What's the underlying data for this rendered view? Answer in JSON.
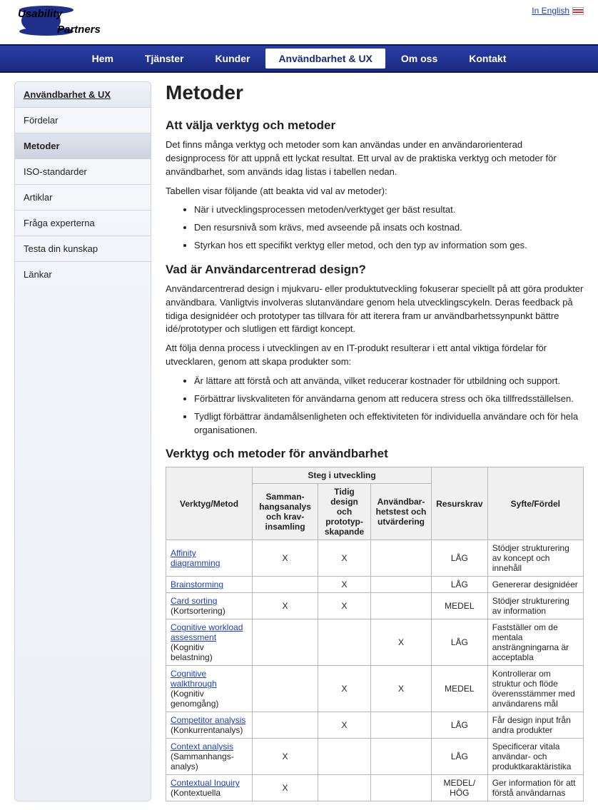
{
  "logo": {
    "line1": "Usability",
    "line2": "Partners"
  },
  "lang": {
    "label": "In English"
  },
  "nav": [
    {
      "label": "Hem",
      "active": false
    },
    {
      "label": "Tjänster",
      "active": false
    },
    {
      "label": "Kunder",
      "active": false
    },
    {
      "label": "Användbarhet & UX",
      "active": true
    },
    {
      "label": "Om oss",
      "active": false
    },
    {
      "label": "Kontakt",
      "active": false
    }
  ],
  "sidebar": [
    {
      "label": "Användbarhet & UX",
      "type": "header"
    },
    {
      "label": "Fördelar",
      "type": "item"
    },
    {
      "label": "Metoder",
      "type": "active"
    },
    {
      "label": "ISO-standarder",
      "type": "item"
    },
    {
      "label": "Artiklar",
      "type": "item"
    },
    {
      "label": "Fråga experterna",
      "type": "item"
    },
    {
      "label": "Testa din kunskap",
      "type": "item"
    },
    {
      "label": "Länkar",
      "type": "item"
    }
  ],
  "page": {
    "title": "Metoder",
    "h2_1": "Att välja verktyg och metoder",
    "p1": "Det finns många verktyg och metoder som kan användas under en användarorienterad designprocess för att uppnå ett lyckat resultat. Ett urval av de praktiska verktyg och metoder för användbarhet, som används idag listas i tabellen nedan.",
    "p2": "Tabellen visar följande (att beakta vid val av metoder):",
    "list1": [
      "När i utvecklingsprocessen metoden/verktyget ger bäst resultat.",
      "Den resursnivå som krävs, med avseende på insats och kostnad.",
      "Styrkan hos ett specifikt verktyg eller metod, och den typ av information som ges."
    ],
    "h2_2": "Vad är Användarcentrerad design?",
    "p3": "Användarcentrerad design i mjukvaru- eller produktutveckling fokuserar speciellt på att göra produkter användbara. Vanligtvis involveras slutanvändare genom hela utvecklingscykeln. Deras feedback på tidiga designidéer och prototyper tas tillvara för att iterera fram ur användbarhetssynpunkt bättre idé/prototyper och slutligen ett färdigt koncept.",
    "p4": "Att följa denna process i utvecklingen av en IT-produkt resulterar i ett antal viktiga fördelar för utvecklaren, genom att skapa produkter som:",
    "list2": [
      "Är lättare att förstå och att använda, vilket reducerar kostnader för utbildning och support.",
      "Förbättrar livskvaliteten för användarna genom att reducera stress och öka tillfredsställelsen.",
      "Tydligt förbättrar ändamålsenligheten och effektiviteten för individuella användare och för hela organisationen."
    ],
    "h2_3": "Verktyg och metoder för användbarhet"
  },
  "table": {
    "super_header": "Steg i utveckling",
    "headers": [
      "Verktyg/Metod",
      "Samman-hangsanalys och krav-insamling",
      "Tidig design och prototyp-skapande",
      "Användbar-hetstest och utvärdering",
      "Resurskrav",
      "Syfte/Fördel"
    ],
    "rows": [
      {
        "link": "Affinity diagramming",
        "extra": "",
        "c1": "X",
        "c2": "X",
        "c3": "",
        "res": "LÅG",
        "purpose": "Stödjer strukturering av koncept och innehåll"
      },
      {
        "link": "Brainstorming",
        "extra": "",
        "c1": "",
        "c2": "X",
        "c3": "",
        "res": "LÅG",
        "purpose": "Genererar designidéer"
      },
      {
        "link": "Card sorting",
        "extra": " (Kortsortering)",
        "c1": "X",
        "c2": "X",
        "c3": "",
        "res": "MEDEL",
        "purpose": "Stödjer strukturering av information"
      },
      {
        "link": "Cognitive workload assessment",
        "extra": " (Kognitiv belastning)",
        "c1": "",
        "c2": "",
        "c3": "X",
        "res": "LÅG",
        "purpose": "Fastställer om de mentala ansträngningarna är acceptabla"
      },
      {
        "link": "Cognitive walkthrough",
        "extra": " (Kognitiv genomgång)",
        "c1": "",
        "c2": "X",
        "c3": "X",
        "res": "MEDEL",
        "purpose": "Kontrollerar om struktur och flöde överensstämmer med användarens mål"
      },
      {
        "link": "Competitor analysis",
        "extra": " (Konkurrentanalys)",
        "c1": "",
        "c2": "X",
        "c3": "",
        "res": "LÅG",
        "purpose": "Får design input från andra produkter"
      },
      {
        "link": "Context analysis",
        "extra": " (Sammanhangs-analys)",
        "c1": "X",
        "c2": "",
        "c3": "",
        "res": "LÅG",
        "purpose": "Specificerar vitala användar- och produktkaraktäristika"
      },
      {
        "link": "Contextual Inquiry",
        "extra": " (Kontextuella",
        "c1": "X",
        "c2": "",
        "c3": "",
        "res": "MEDEL/ HÖG",
        "purpose": "Ger information för att förstå användarnas"
      }
    ]
  }
}
